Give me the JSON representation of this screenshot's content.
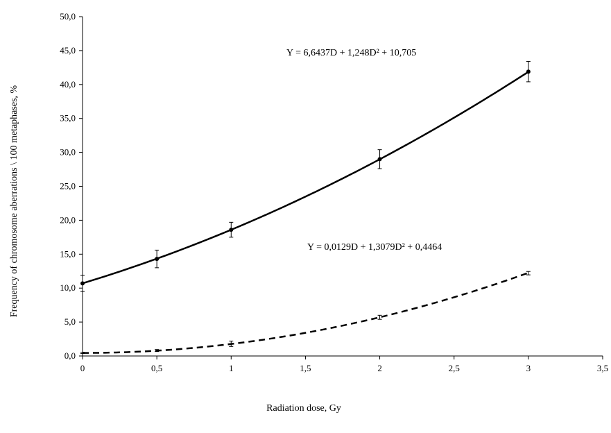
{
  "chart_data": {
    "type": "line",
    "title": "",
    "xlabel": "Radiation dose, Gy",
    "ylabel": "Frequency of chromosome aberrations \\ 100 metaphases, %",
    "xlim": [
      0,
      3.5
    ],
    "ylim": [
      0,
      50
    ],
    "grid": false,
    "legend": "none",
    "x_ticks": [
      "0",
      "0,5",
      "1",
      "1,5",
      "2",
      "2,5",
      "3",
      "3,5"
    ],
    "y_ticks": [
      "0,0",
      "5,0",
      "10,0",
      "15,0",
      "20,0",
      "25,0",
      "30,0",
      "35,0",
      "40,0",
      "45,0",
      "50,0"
    ],
    "series": [
      {
        "style": "solid",
        "color": "#000000",
        "x": [
          0,
          0.5,
          1,
          2,
          3
        ],
        "values": [
          10.7,
          14.3,
          18.6,
          29.0,
          41.9
        ],
        "error": [
          1.2,
          1.3,
          1.1,
          1.4,
          1.5
        ],
        "fit": {
          "a": 6.6437,
          "b": 1.248,
          "c": 10.705
        },
        "equation": "Y = 6,6437D + 1,248D² + 10,705"
      },
      {
        "style": "dashed",
        "color": "#000000",
        "x": [
          0,
          0.5,
          1,
          2,
          3
        ],
        "values": [
          0.45,
          0.8,
          1.8,
          5.7,
          12.2
        ],
        "error": [
          0.1,
          0.15,
          0.4,
          0.3,
          0.25
        ],
        "fit": {
          "a": 0.0129,
          "b": 1.3079,
          "c": 0.4464
        },
        "equation": "Y = 0,0129D + 1,3079D² + 0,4464"
      }
    ]
  }
}
